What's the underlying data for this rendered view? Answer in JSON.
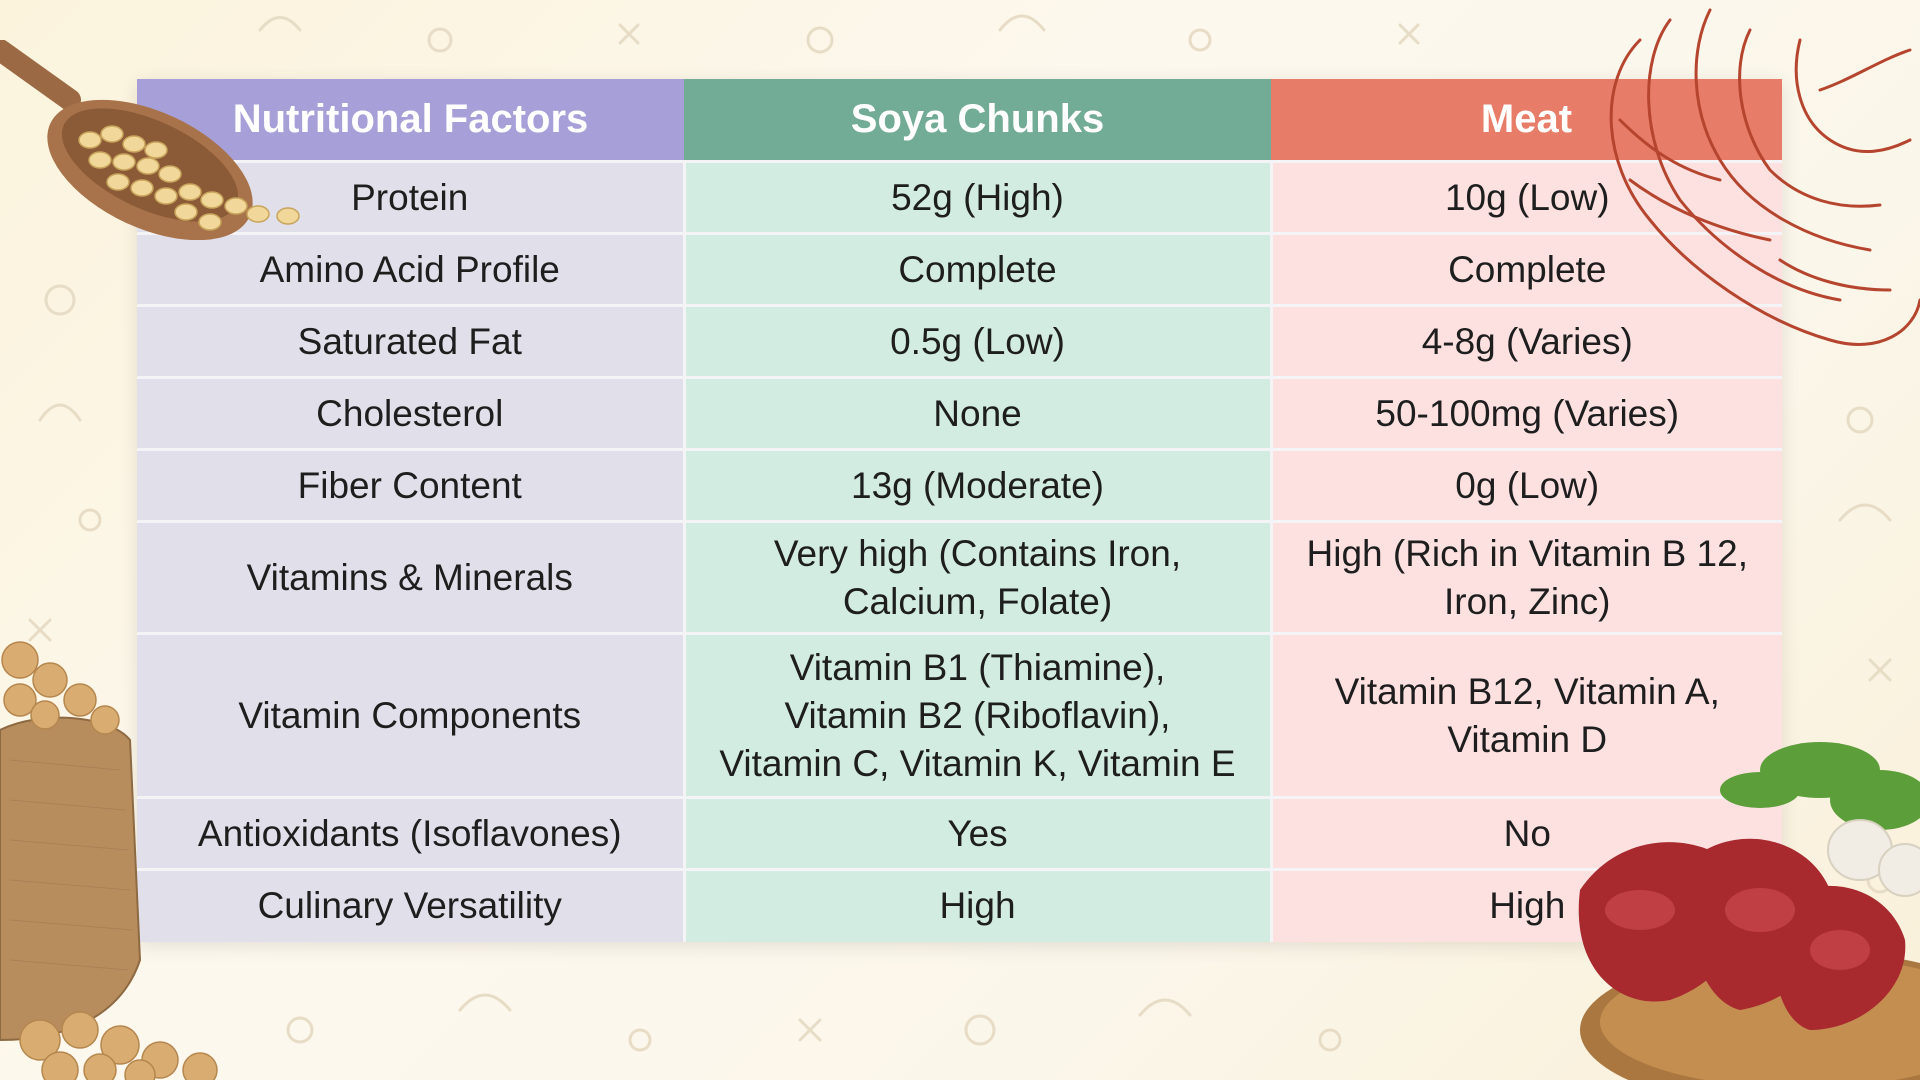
{
  "table": {
    "headers": [
      "Nutritional Factors",
      "Soya Chunks",
      "Meat"
    ],
    "rows": [
      {
        "factor": "Protein",
        "soya": "52g (High)",
        "meat": "10g (Low)"
      },
      {
        "factor": "Amino Acid Profile",
        "soya": "Complete",
        "meat": "Complete"
      },
      {
        "factor": "Saturated Fat",
        "soya": "0.5g (Low)",
        "meat": "4-8g (Varies)"
      },
      {
        "factor": "Cholesterol",
        "soya": "None",
        "meat": "50-100mg (Varies)"
      },
      {
        "factor": "Fiber Content",
        "soya": "13g (Moderate)",
        "meat": "0g (Low)"
      },
      {
        "factor": "Vitamins & Minerals",
        "soya": "Very high (Contains Iron,\nCalcium, Folate)",
        "meat": "High (Rich in Vitamin B 12,\nIron, Zinc)"
      },
      {
        "factor": "Vitamin Components",
        "soya": "Vitamin B1 (Thiamine),\nVitamin B2 (Riboflavin),\nVitamin C, Vitamin K, Vitamin E",
        "meat": "Vitamin B12, Vitamin A,\nVitamin D"
      },
      {
        "factor": "Antioxidants (Isoflavones)",
        "soya": "Yes",
        "meat": "No"
      },
      {
        "factor": "Culinary Versatility",
        "soya": "High",
        "meat": "High"
      }
    ]
  },
  "colors": {
    "factor_header": "#a79fd8",
    "soya_header": "#72ab96",
    "meat_header": "#e77c68",
    "factor_cell": "#e1e0ea",
    "soya_cell": "#d2ece1",
    "meat_cell": "#fde1e1"
  },
  "decorations": [
    "wooden-spoon-with-soybeans-icon",
    "meat-line-drawing-icon",
    "jute-sack-soya-chunks-icon",
    "raw-meat-plate-icon"
  ]
}
